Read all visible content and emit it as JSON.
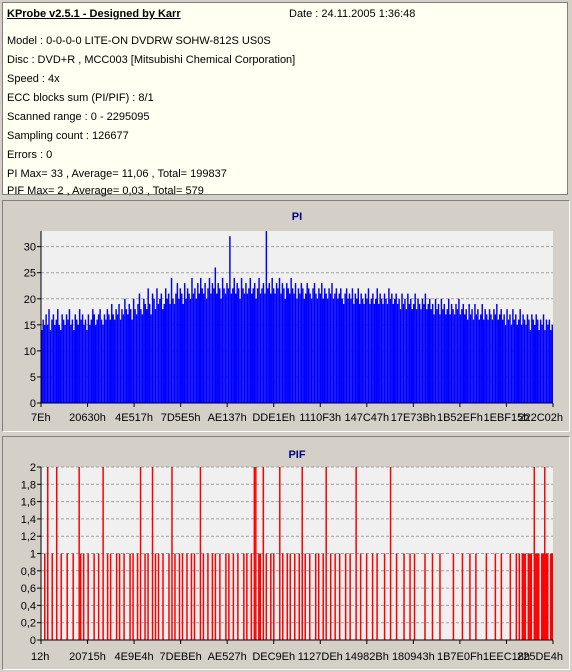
{
  "info": {
    "title": "KProbe v2.5.1 - Designed by Karr",
    "date": "Date : 24.11.2005 1:36:48",
    "lines": [
      "Model : 0-0-0-0 LITE-ON DVDRW SOHW-812S  US0S",
      "Disc : DVD+R , MCC003 [Mitsubishi Chemical Corporation]",
      "Speed : 4x",
      "ECC blocks sum (PI/PIF) : 8/1",
      "Scanned range : 0 - 2295095",
      "Sampling count : 126677",
      "Errors : 0",
      "PI Max= 33 , Average= 11,06 , Total= 199837",
      "PIF Max= 2 , Average= 0,03 , Total= 579"
    ]
  },
  "colors": {
    "pi_bar": "#0000ff",
    "pif_bar": "#ff0000",
    "plot_bg": "#f0f0f0",
    "grid": "#a0a0a0",
    "title": "#000080"
  },
  "chart_data": [
    {
      "type": "bar",
      "title": "PI",
      "xlabel": "",
      "ylabel": "",
      "ylim": [
        0,
        33
      ],
      "yticks": [
        "0",
        "5",
        "10",
        "15",
        "20",
        "25",
        "30"
      ],
      "xticks": [
        "7Eh",
        "20630h",
        "4E517h",
        "7D5E5h",
        "AE137h",
        "DDE1Eh",
        "1110F3h",
        "147C47h",
        "17E73Bh",
        "1B52EFh",
        "1EBF15h",
        "222C02h"
      ],
      "grid": "horizontal-dashed",
      "max": 33,
      "average": 11.06,
      "total": 199837,
      "series": [
        {
          "values": [
            14,
            16,
            15,
            17,
            15,
            18,
            14,
            16,
            17,
            15,
            16,
            18,
            15,
            14,
            17,
            16,
            15,
            17,
            16,
            18,
            15,
            16,
            14,
            17,
            16,
            15,
            18,
            16,
            17,
            15,
            16,
            14,
            17,
            15,
            16,
            18,
            17,
            15,
            16,
            17,
            18,
            16,
            15,
            17,
            16,
            18,
            17,
            16,
            19,
            17,
            16,
            18,
            17,
            19,
            16,
            18,
            17,
            20,
            18,
            17,
            19,
            18,
            16,
            20,
            18,
            17,
            19,
            21,
            18,
            17,
            20,
            19,
            18,
            22,
            19,
            17,
            21,
            20,
            18,
            22,
            19,
            20,
            21,
            18,
            19,
            22,
            20,
            21,
            19,
            24,
            20,
            19,
            21,
            23,
            20,
            22,
            21,
            19,
            23,
            20,
            22,
            21,
            20,
            24,
            21,
            22,
            20,
            23,
            21,
            24,
            22,
            21,
            23,
            20,
            22,
            24,
            21,
            23,
            22,
            26,
            21,
            23,
            22,
            20,
            24,
            22,
            21,
            23,
            22,
            32,
            21,
            22,
            24,
            21,
            23,
            22,
            20,
            24,
            22,
            21,
            23,
            21,
            22,
            24,
            21,
            22,
            23,
            20,
            22,
            24,
            21,
            22,
            23,
            21,
            33,
            22,
            23,
            21,
            24,
            22,
            21,
            23,
            22,
            24,
            21,
            23,
            22,
            20,
            23,
            22,
            21,
            24,
            22,
            21,
            23,
            20,
            22,
            21,
            23,
            22,
            20,
            21,
            23,
            22,
            21,
            20,
            22,
            23,
            21,
            20,
            22,
            21,
            23,
            20,
            22,
            21,
            20,
            22,
            21,
            23,
            20,
            21,
            22,
            20,
            21,
            22,
            20,
            19,
            21,
            22,
            20,
            21,
            20,
            22,
            19,
            21,
            20,
            22,
            19,
            21,
            20,
            19,
            21,
            20,
            22,
            19,
            20,
            21,
            19,
            20,
            22,
            19,
            21,
            20,
            19,
            21,
            20,
            19,
            22,
            20,
            21,
            19,
            20,
            21,
            19,
            20,
            18,
            21,
            19,
            20,
            18,
            21,
            19,
            20,
            18,
            19,
            21,
            18,
            20,
            19,
            18,
            20,
            19,
            21,
            18,
            19,
            20,
            18,
            19,
            17,
            20,
            18,
            19,
            17,
            20,
            18,
            19,
            17,
            18,
            20,
            17,
            19,
            18,
            17,
            19,
            18,
            20,
            17,
            18,
            19,
            17,
            18,
            16,
            19,
            17,
            18,
            16,
            19,
            17,
            18,
            16,
            17,
            19,
            16,
            18,
            17,
            16,
            18,
            17,
            16,
            18,
            17,
            19,
            16,
            17,
            18,
            16,
            17,
            15,
            18,
            16,
            17,
            15,
            18,
            16,
            17,
            15,
            16,
            18,
            15,
            17,
            16,
            15,
            17,
            16,
            14,
            17,
            16,
            15,
            17,
            16,
            14,
            16,
            15,
            17,
            14,
            16,
            15,
            16,
            14,
            15
          ]
        }
      ]
    },
    {
      "type": "bar",
      "title": "PIF",
      "xlabel": "",
      "ylabel": "",
      "ylim": [
        0,
        2
      ],
      "yticks": [
        "0",
        "0,2",
        "0,4",
        "0,6",
        "0,8",
        "1",
        "1,2",
        "1,4",
        "1,6",
        "1,8",
        "2"
      ],
      "xticks": [
        "12h",
        "20715h",
        "4E9E4h",
        "7DEBEh",
        "AE527h",
        "DEC9Eh",
        "1127DEh",
        "14982Bh",
        "180943h",
        "1B7E0Fh",
        "1EEC18h",
        "225DE4h"
      ],
      "grid": "horizontal-dashed",
      "max": 2,
      "average": 0.03,
      "total": 579,
      "series": [
        {
          "values": [
            0,
            0,
            1,
            0,
            2,
            0,
            0,
            1,
            0,
            0,
            2,
            0,
            0,
            1,
            0,
            0,
            0,
            1,
            0,
            0,
            0,
            1,
            0,
            0,
            0,
            2,
            1,
            0,
            1,
            0,
            0,
            1,
            0,
            0,
            0,
            1,
            0,
            0,
            1,
            0,
            0,
            2,
            0,
            0,
            1,
            0,
            1,
            0,
            0,
            0,
            1,
            0,
            1,
            0,
            0,
            1,
            0,
            0,
            0,
            1,
            0,
            1,
            0,
            0,
            1,
            0,
            2,
            0,
            0,
            1,
            0,
            1,
            0,
            0,
            2,
            0,
            1,
            0,
            1,
            0,
            0,
            1,
            0,
            0,
            0,
            1,
            0,
            2,
            0,
            1,
            0,
            0,
            1,
            0,
            1,
            0,
            0,
            1,
            0,
            0,
            1,
            0,
            1,
            0,
            0,
            0,
            2,
            0,
            1,
            0,
            0,
            1,
            0,
            0,
            1,
            0,
            1,
            0,
            0,
            1,
            0,
            0,
            0,
            1,
            0,
            1,
            0,
            0,
            1,
            0,
            0,
            1,
            0,
            0,
            0,
            1,
            0,
            1,
            0,
            0,
            1,
            0,
            2,
            2,
            0,
            1,
            1,
            0,
            2,
            0,
            1,
            0,
            0,
            1,
            0,
            1,
            0,
            0,
            0,
            2,
            0,
            1,
            0,
            0,
            1,
            0,
            1,
            0,
            0,
            1,
            0,
            0,
            1,
            0,
            2,
            0,
            1,
            0,
            0,
            1,
            0,
            0,
            0,
            1,
            0,
            1,
            0,
            0,
            1,
            0,
            2,
            0,
            0,
            1,
            0,
            0,
            1,
            0,
            0,
            1,
            0,
            0,
            0,
            1,
            0,
            0,
            1,
            0,
            0,
            0,
            2,
            0,
            0,
            1,
            0,
            0,
            0,
            1,
            0,
            0,
            0,
            1,
            0,
            0,
            1,
            0,
            0,
            0,
            0,
            1,
            0,
            0,
            0,
            2,
            0,
            0,
            0,
            1,
            0,
            0,
            0,
            0,
            1,
            0,
            0,
            0,
            1,
            0,
            0,
            1,
            0,
            0,
            0,
            0,
            0,
            0,
            1,
            0,
            0,
            0,
            0,
            1,
            0,
            0,
            0,
            0,
            1,
            0,
            0,
            0,
            0,
            0,
            0,
            0,
            0,
            1,
            0,
            0,
            0,
            0,
            0,
            1,
            0,
            0,
            0,
            0,
            1,
            0,
            0,
            0,
            1,
            0,
            0,
            0,
            0,
            0,
            0,
            1,
            0,
            0,
            0,
            0,
            0,
            1,
            0,
            0,
            0,
            1,
            0,
            0,
            0,
            0,
            0,
            1,
            0,
            0,
            0,
            1,
            0,
            1,
            0,
            1,
            1,
            1,
            0,
            1,
            1,
            1,
            0,
            2,
            1,
            1,
            1,
            0,
            1,
            1,
            2,
            1,
            1,
            0,
            1,
            1
          ]
        }
      ]
    }
  ]
}
